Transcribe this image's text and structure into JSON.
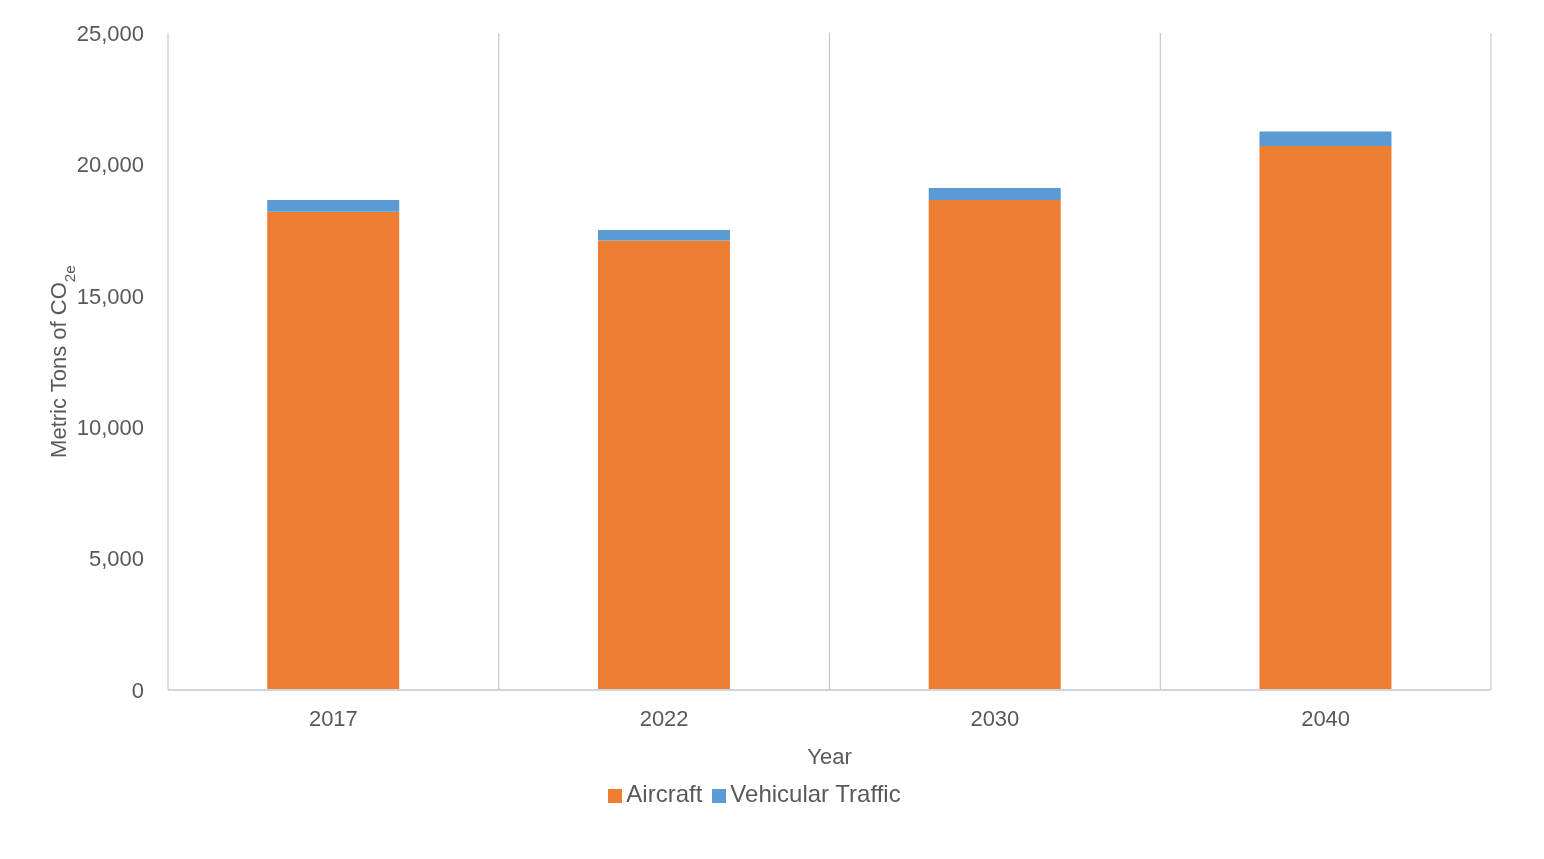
{
  "chart_data": {
    "type": "bar",
    "stacked": true,
    "xlabel": "Year",
    "ylabel": "Metric Tons of CO$_{2e}$",
    "categories": [
      "2017",
      "2022",
      "2030",
      "2040"
    ],
    "series": [
      {
        "name": "Aircraft",
        "color": "#ed7d31",
        "values": [
          18200,
          17100,
          18650,
          20700
        ]
      },
      {
        "name": "Vehicular Traffic",
        "color": "#5b9bd5",
        "values": [
          450,
          400,
          450,
          550
        ]
      }
    ],
    "ylim": [
      0,
      25000
    ],
    "yticks": [
      0,
      {
        "value": 5000,
        "label": "5,000"
      },
      {
        "value": 10000,
        "label": "10,000"
      },
      {
        "value": 15000,
        "label": "15,000"
      },
      {
        "value": 20000,
        "label": "20,000"
      },
      {
        "value": 25000,
        "label": "25,000"
      }
    ],
    "grid": "x",
    "legend": "bottom"
  }
}
